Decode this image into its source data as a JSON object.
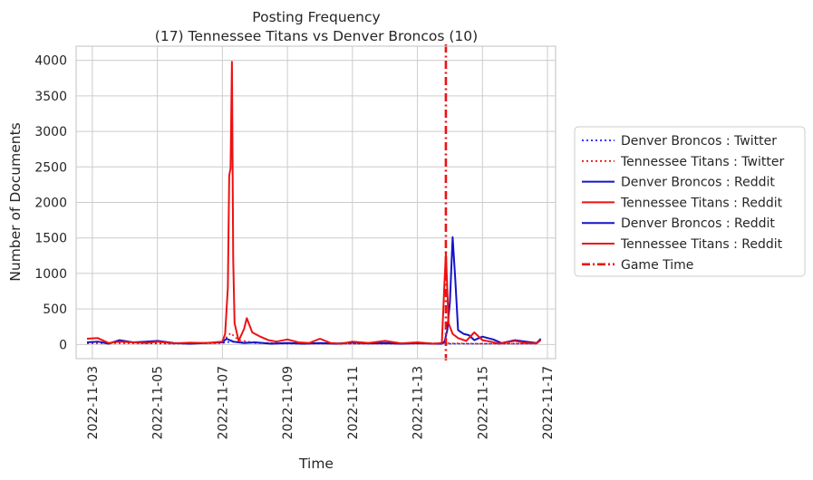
{
  "chart_data": {
    "type": "line",
    "title": "Posting Frequency",
    "subtitle": "(17) Tennessee Titans vs Denver Broncos (10)",
    "xlabel": "Time",
    "ylabel": "Number of Documents",
    "xlim": [
      "2022-11-02T12:00",
      "2022-11-17T06:00"
    ],
    "ylim": [
      -200,
      4200
    ],
    "x_ticks": [
      "2022-11-03",
      "2022-11-05",
      "2022-11-07",
      "2022-11-09",
      "2022-11-11",
      "2022-11-13",
      "2022-11-15",
      "2022-11-17"
    ],
    "y_ticks": [
      0,
      500,
      1000,
      1500,
      2000,
      2500,
      3000,
      3500,
      4000
    ],
    "grid": true,
    "legend_position": "outside-right",
    "game_time": {
      "name": "Game Time",
      "x": "2022-11-13T21:00",
      "color": "#ee1111",
      "style": "dashdot"
    },
    "series": [
      {
        "name": "Denver Broncos : Twitter",
        "color": "#1a1aff",
        "style": "dotted",
        "points": [
          [
            "2022-11-02T20:00",
            15
          ],
          [
            "2022-11-03T12:00",
            20
          ],
          [
            "2022-11-04T12:00",
            15
          ],
          [
            "2022-11-05T12:00",
            10
          ],
          [
            "2022-11-06T12:00",
            15
          ],
          [
            "2022-11-07T00:00",
            20
          ],
          [
            "2022-11-07T06:00",
            40
          ],
          [
            "2022-11-07T12:00",
            35
          ],
          [
            "2022-11-08T00:00",
            20
          ],
          [
            "2022-11-09T00:00",
            10
          ],
          [
            "2022-11-10T00:00",
            10
          ],
          [
            "2022-11-11T00:00",
            10
          ],
          [
            "2022-11-12T00:00",
            10
          ],
          [
            "2022-11-13T00:00",
            10
          ],
          [
            "2022-11-13T21:00",
            15
          ],
          [
            "2022-11-14T00:00",
            10
          ],
          [
            "2022-11-15T00:00",
            10
          ],
          [
            "2022-11-16T00:00",
            10
          ],
          [
            "2022-11-16T16:00",
            10
          ]
        ]
      },
      {
        "name": "Tennessee Titans : Twitter",
        "color": "#ee1111",
        "style": "dotted",
        "points": [
          [
            "2022-11-02T20:00",
            20
          ],
          [
            "2022-11-03T12:00",
            25
          ],
          [
            "2022-11-04T12:00",
            20
          ],
          [
            "2022-11-05T12:00",
            15
          ],
          [
            "2022-11-06T12:00",
            20
          ],
          [
            "2022-11-07T00:00",
            40
          ],
          [
            "2022-11-07T06:00",
            160
          ],
          [
            "2022-11-07T12:00",
            60
          ],
          [
            "2022-11-08T00:00",
            25
          ],
          [
            "2022-11-09T00:00",
            15
          ],
          [
            "2022-11-10T00:00",
            10
          ],
          [
            "2022-11-11T00:00",
            10
          ],
          [
            "2022-11-12T00:00",
            10
          ],
          [
            "2022-11-13T00:00",
            10
          ],
          [
            "2022-11-13T21:00",
            20
          ],
          [
            "2022-11-14T00:00",
            15
          ],
          [
            "2022-11-15T00:00",
            10
          ],
          [
            "2022-11-16T00:00",
            10
          ],
          [
            "2022-11-16T16:00",
            10
          ]
        ]
      },
      {
        "name": "Denver Broncos : Reddit",
        "color": "#1414c8",
        "style": "solid",
        "points": [
          [
            "2022-11-02T20:00",
            30
          ],
          [
            "2022-11-03T04:00",
            40
          ],
          [
            "2022-11-03T12:00",
            10
          ],
          [
            "2022-11-03T20:00",
            60
          ],
          [
            "2022-11-04T06:00",
            30
          ],
          [
            "2022-11-04T16:00",
            40
          ],
          [
            "2022-11-05T00:00",
            50
          ],
          [
            "2022-11-05T12:00",
            20
          ],
          [
            "2022-11-06T00:00",
            10
          ],
          [
            "2022-11-06T12:00",
            20
          ],
          [
            "2022-11-07T00:00",
            30
          ],
          [
            "2022-11-07T03:00",
            80
          ],
          [
            "2022-11-07T08:00",
            40
          ],
          [
            "2022-11-07T16:00",
            20
          ],
          [
            "2022-11-08T00:00",
            30
          ],
          [
            "2022-11-08T12:00",
            10
          ],
          [
            "2022-11-09T00:00",
            20
          ],
          [
            "2022-11-09T12:00",
            10
          ],
          [
            "2022-11-10T00:00",
            20
          ],
          [
            "2022-11-10T12:00",
            10
          ],
          [
            "2022-11-11T00:00",
            30
          ],
          [
            "2022-11-11T12:00",
            15
          ],
          [
            "2022-11-12T00:00",
            20
          ],
          [
            "2022-11-12T12:00",
            10
          ],
          [
            "2022-11-13T00:00",
            20
          ],
          [
            "2022-11-13T12:00",
            10
          ],
          [
            "2022-11-13T18:00",
            10
          ],
          [
            "2022-11-13T20:00",
            40
          ],
          [
            "2022-11-13T22:00",
            200
          ],
          [
            "2022-11-14T00:00",
            600
          ],
          [
            "2022-11-14T02:00",
            1510
          ],
          [
            "2022-11-14T04:00",
            900
          ],
          [
            "2022-11-14T06:00",
            200
          ],
          [
            "2022-11-14T10:00",
            150
          ],
          [
            "2022-11-14T14:00",
            130
          ],
          [
            "2022-11-14T18:00",
            60
          ],
          [
            "2022-11-15T00:00",
            110
          ],
          [
            "2022-11-15T04:00",
            90
          ],
          [
            "2022-11-15T08:00",
            70
          ],
          [
            "2022-11-15T14:00",
            20
          ],
          [
            "2022-11-16T00:00",
            60
          ],
          [
            "2022-11-16T08:00",
            40
          ],
          [
            "2022-11-16T16:00",
            20
          ],
          [
            "2022-11-16T19:00",
            80
          ]
        ]
      },
      {
        "name": "Tennessee Titans : Reddit",
        "color": "#ee1111",
        "style": "solid",
        "points": [
          [
            "2022-11-02T20:00",
            80
          ],
          [
            "2022-11-03T04:00",
            90
          ],
          [
            "2022-11-03T12:00",
            20
          ],
          [
            "2022-11-03T20:00",
            40
          ],
          [
            "2022-11-04T06:00",
            30
          ],
          [
            "2022-11-04T16:00",
            20
          ],
          [
            "2022-11-05T00:00",
            40
          ],
          [
            "2022-11-05T12:00",
            15
          ],
          [
            "2022-11-06T00:00",
            25
          ],
          [
            "2022-11-06T12:00",
            20
          ],
          [
            "2022-11-07T00:00",
            40
          ],
          [
            "2022-11-07T02:00",
            150
          ],
          [
            "2022-11-07T04:00",
            800
          ],
          [
            "2022-11-07T05:00",
            2380
          ],
          [
            "2022-11-07T06:00",
            2480
          ],
          [
            "2022-11-07T07:00",
            3980
          ],
          [
            "2022-11-07T08:00",
            1200
          ],
          [
            "2022-11-07T09:00",
            300
          ],
          [
            "2022-11-07T12:00",
            50
          ],
          [
            "2022-11-07T16:00",
            220
          ],
          [
            "2022-11-07T18:00",
            370
          ],
          [
            "2022-11-07T22:00",
            170
          ],
          [
            "2022-11-08T04:00",
            110
          ],
          [
            "2022-11-08T10:00",
            60
          ],
          [
            "2022-11-08T16:00",
            40
          ],
          [
            "2022-11-09T00:00",
            70
          ],
          [
            "2022-11-09T08:00",
            30
          ],
          [
            "2022-11-09T16:00",
            20
          ],
          [
            "2022-11-10T00:00",
            80
          ],
          [
            "2022-11-10T08:00",
            20
          ],
          [
            "2022-11-10T16:00",
            10
          ],
          [
            "2022-11-11T00:00",
            40
          ],
          [
            "2022-11-11T12:00",
            20
          ],
          [
            "2022-11-12T00:00",
            50
          ],
          [
            "2022-11-12T12:00",
            15
          ],
          [
            "2022-11-13T00:00",
            30
          ],
          [
            "2022-11-13T12:00",
            10
          ],
          [
            "2022-11-13T18:00",
            20
          ],
          [
            "2022-11-13T20:00",
            900
          ],
          [
            "2022-11-13T21:00",
            1290
          ],
          [
            "2022-11-13T23:00",
            300
          ],
          [
            "2022-11-14T02:00",
            150
          ],
          [
            "2022-11-14T06:00",
            90
          ],
          [
            "2022-11-14T12:00",
            50
          ],
          [
            "2022-11-14T18:00",
            170
          ],
          [
            "2022-11-15T00:00",
            60
          ],
          [
            "2022-11-15T06:00",
            40
          ],
          [
            "2022-11-15T12:00",
            10
          ],
          [
            "2022-11-16T00:00",
            50
          ],
          [
            "2022-11-16T08:00",
            20
          ],
          [
            "2022-11-16T16:00",
            15
          ],
          [
            "2022-11-16T19:00",
            60
          ]
        ]
      }
    ],
    "legend": [
      {
        "label": "Denver Broncos : Twitter",
        "color": "#1a1aff",
        "style": "dotted"
      },
      {
        "label": "Tennessee Titans : Twitter",
        "color": "#ee1111",
        "style": "dotted"
      },
      {
        "label": "Denver Broncos : Reddit",
        "color": "#1414c8",
        "style": "solid"
      },
      {
        "label": "Tennessee Titans : Reddit",
        "color": "#ee1111",
        "style": "solid"
      },
      {
        "label": "Denver Broncos : Reddit",
        "color": "#1414c8",
        "style": "solid"
      },
      {
        "label": "Tennessee Titans : Reddit",
        "color": "#ee1111",
        "style": "solid"
      },
      {
        "label": "Game Time",
        "color": "#ee1111",
        "style": "dashdot"
      }
    ]
  }
}
